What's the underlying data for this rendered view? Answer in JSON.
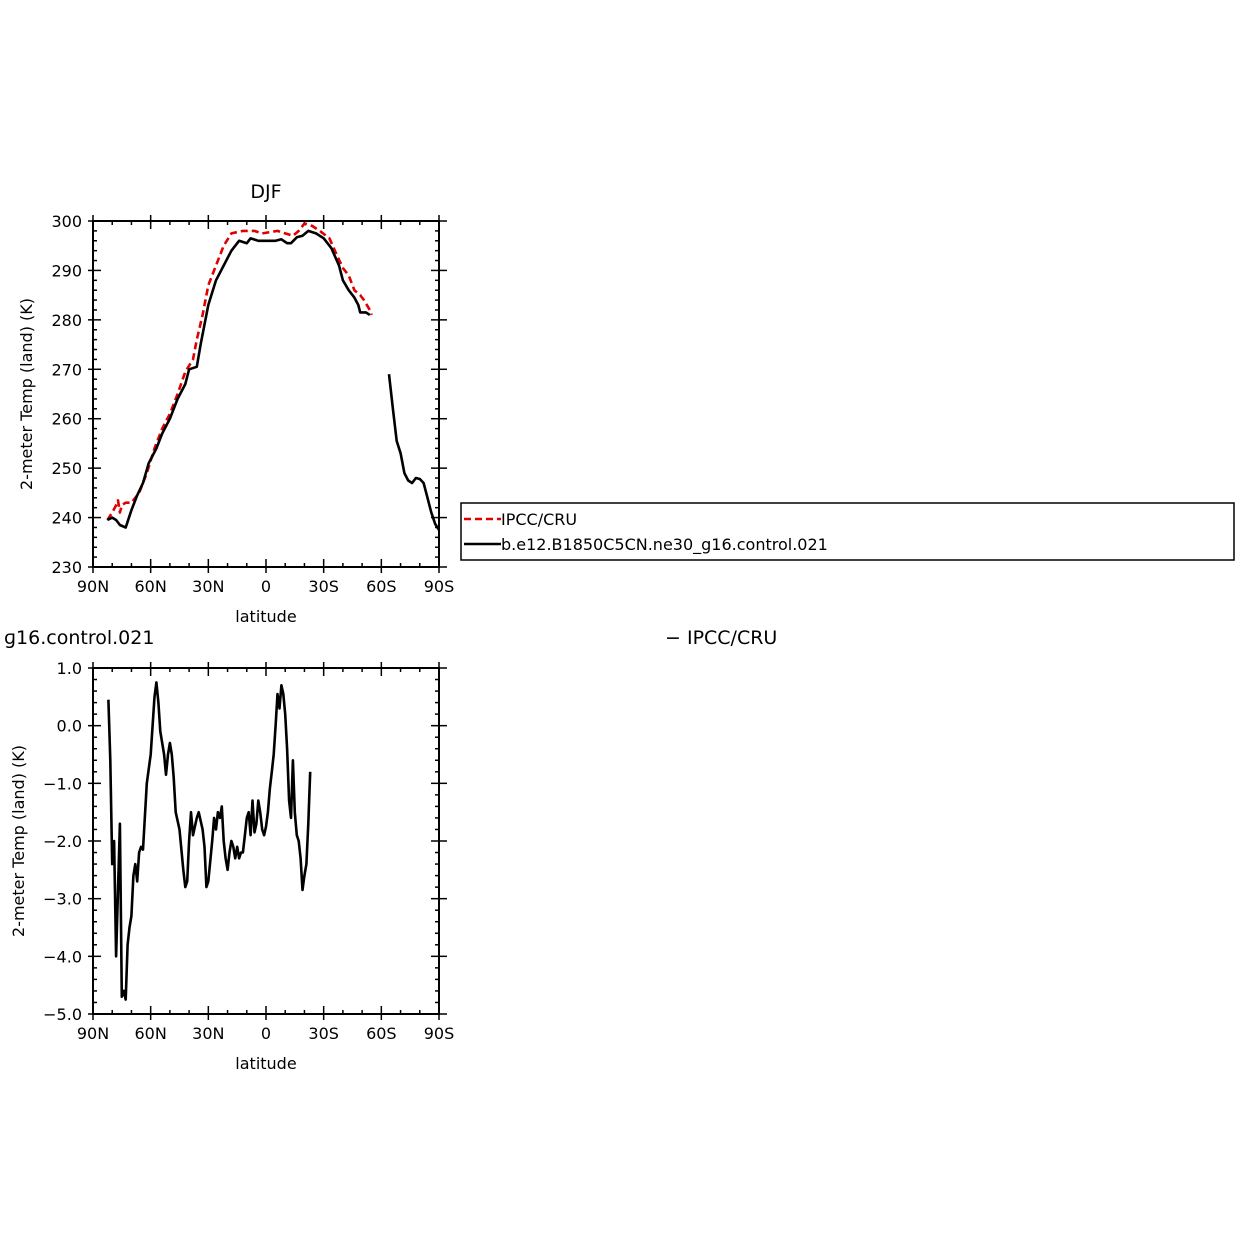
{
  "colors": {
    "obs": "#e00000",
    "model": "#000000",
    "frame": "#000000"
  },
  "chart_data": [
    {
      "type": "line",
      "title": "DJF",
      "xlabel": "latitude",
      "ylabel": "2-meter Temp (land) (K)",
      "xlim": [
        90,
        -90
      ],
      "ylim": [
        230,
        300
      ],
      "xticks": [
        90,
        60,
        30,
        0,
        -30,
        -60,
        -90
      ],
      "xticklabels": [
        "90N",
        "60N",
        "30N",
        "0",
        "30S",
        "60S",
        "90S"
      ],
      "yticks": [
        230,
        240,
        250,
        260,
        270,
        280,
        290,
        300
      ],
      "yticklabels": [
        "230",
        "240",
        "250",
        "260",
        "270",
        "280",
        "290",
        "300"
      ],
      "legend": "right, outside plot",
      "series": [
        {
          "name": "IPCC/CRU",
          "style": "dashed",
          "color": "#e00000",
          "segments": [
            [
              [
                82.5,
                239.5
              ],
              [
                80,
                241
              ],
              [
                78,
                242.5
              ],
              [
                77,
                243.5
              ],
              [
                76,
                241
              ],
              [
                75,
                242.5
              ],
              [
                73,
                243
              ],
              [
                70,
                243
              ],
              [
                66,
                245
              ],
              [
                62,
                249
              ],
              [
                58,
                254
              ],
              [
                54,
                258
              ],
              [
                50,
                261
              ],
              [
                46,
                265
              ],
              [
                42,
                269.5
              ],
              [
                38,
                272
              ],
              [
                36,
                276
              ],
              [
                33,
                281
              ],
              [
                30,
                287
              ],
              [
                26,
                291
              ],
              [
                22,
                295
              ],
              [
                18,
                297.5
              ],
              [
                12,
                298
              ],
              [
                6,
                298
              ],
              [
                2,
                297.5
              ],
              [
                -6,
                298
              ],
              [
                -10,
                297.5
              ],
              [
                -14,
                297
              ],
              [
                -17,
                298
              ],
              [
                -20,
                299.5
              ],
              [
                -24,
                299
              ],
              [
                -28,
                298
              ],
              [
                -33,
                296.5
              ],
              [
                -37,
                293
              ],
              [
                -40,
                290.5
              ],
              [
                -43,
                289
              ],
              [
                -46,
                286
              ],
              [
                -49,
                285
              ],
              [
                -51,
                284
              ],
              [
                -54,
                282
              ],
              [
                -55,
                281
              ]
            ]
          ]
        },
        {
          "name": "b.e12.B1850C5CN.ne30_g16.control.021",
          "style": "solid",
          "color": "#000000",
          "segments": [
            [
              [
                82.5,
                239.5
              ],
              [
                80,
                240
              ],
              [
                78,
                239.5
              ],
              [
                76,
                238.5
              ],
              [
                73,
                238
              ],
              [
                70,
                241.5
              ],
              [
                67,
                244.5
              ],
              [
                64,
                247
              ],
              [
                61,
                251
              ],
              [
                57,
                254
              ],
              [
                54,
                257
              ],
              [
                50,
                260
              ],
              [
                46,
                264
              ],
              [
                42,
                267
              ],
              [
                40,
                270
              ],
              [
                36,
                270.5
              ],
              [
                34,
                275
              ],
              [
                30,
                283
              ],
              [
                26,
                288
              ],
              [
                22,
                291
              ],
              [
                18,
                294
              ],
              [
                14,
                296
              ],
              [
                10,
                295.5
              ],
              [
                8,
                296.5
              ],
              [
                4,
                296
              ],
              [
                0,
                296
              ],
              [
                -5,
                296
              ],
              [
                -8,
                296.3
              ],
              [
                -11,
                295.5
              ],
              [
                -13,
                295.5
              ],
              [
                -16,
                296.7
              ],
              [
                -19,
                297
              ],
              [
                -22,
                298
              ],
              [
                -26,
                297.5
              ],
              [
                -30,
                296.5
              ],
              [
                -34,
                294.5
              ],
              [
                -38,
                291
              ],
              [
                -40,
                288
              ],
              [
                -43,
                286
              ],
              [
                -46,
                284.5
              ],
              [
                -48,
                283
              ],
              [
                -49,
                281.5
              ],
              [
                -52,
                281.5
              ],
              [
                -54,
                281
              ]
            ],
            [
              [
                -64,
                269
              ],
              [
                -66,
                262
              ],
              [
                -68,
                255.5
              ],
              [
                -70,
                253
              ],
              [
                -72,
                249
              ],
              [
                -74,
                247.5
              ],
              [
                -76,
                247
              ],
              [
                -78,
                248
              ],
              [
                -80,
                247.8
              ],
              [
                -82,
                247
              ],
              [
                -84,
                244
              ],
              [
                -86,
                241
              ],
              [
                -88,
                238.7
              ],
              [
                -90,
                237.5
              ]
            ]
          ]
        }
      ]
    },
    {
      "type": "line",
      "title": "ɡ 16.control.021",
      "title_right": "− IPCC/CRU",
      "xlabel": "latitude",
      "ylabel": "2-meter Temp (land) (K)",
      "xlim": [
        90,
        -90
      ],
      "ylim": [
        -5.0,
        1.0
      ],
      "xticks": [
        90,
        60,
        30,
        0,
        -30,
        -60,
        -90
      ],
      "xticklabels": [
        "90N",
        "60N",
        "30N",
        "0",
        "30S",
        "60S",
        "90S"
      ],
      "yticks": [
        -5.0,
        -4.0,
        -3.0,
        -2.0,
        -1.0,
        0.0,
        1.0
      ],
      "yticklabels": [
        "−5.0",
        "−4.0",
        "−3.0",
        "−2.0",
        "−1.0",
        "0.0",
        "1.0"
      ],
      "series": [
        {
          "style": "solid",
          "color": "#000000",
          "segments": [
            [
              [
                82,
                0.45
              ],
              [
                81,
                -0.6
              ],
              [
                80,
                -2.4
              ],
              [
                79,
                -2.0
              ],
              [
                78,
                -4.0
              ],
              [
                76,
                -1.7
              ],
              [
                75,
                -4.7
              ],
              [
                74,
                -4.6
              ],
              [
                73,
                -4.75
              ],
              [
                72,
                -3.8
              ],
              [
                71,
                -3.5
              ],
              [
                70,
                -3.3
              ],
              [
                69,
                -2.6
              ],
              [
                68,
                -2.4
              ],
              [
                67,
                -2.7
              ],
              [
                66,
                -2.2
              ],
              [
                65,
                -2.1
              ],
              [
                64,
                -2.15
              ],
              [
                62,
                -1.0
              ],
              [
                60,
                -0.5
              ],
              [
                58,
                0.5
              ],
              [
                57,
                0.75
              ],
              [
                56,
                0.4
              ],
              [
                55,
                -0.1
              ],
              [
                53,
                -0.5
              ],
              [
                52,
                -0.85
              ],
              [
                51,
                -0.5
              ],
              [
                50,
                -0.3
              ],
              [
                49,
                -0.5
              ],
              [
                48,
                -0.9
              ],
              [
                47,
                -1.5
              ],
              [
                45,
                -1.8
              ],
              [
                43,
                -2.5
              ],
              [
                42,
                -2.8
              ],
              [
                41,
                -2.7
              ],
              [
                40,
                -2.0
              ],
              [
                39,
                -1.5
              ],
              [
                38,
                -1.9
              ],
              [
                36,
                -1.6
              ],
              [
                35,
                -1.5
              ],
              [
                33,
                -1.8
              ],
              [
                32,
                -2.1
              ],
              [
                31,
                -2.8
              ],
              [
                30,
                -2.7
              ],
              [
                28,
                -2.0
              ],
              [
                27,
                -1.6
              ],
              [
                26,
                -1.8
              ],
              [
                25,
                -1.5
              ],
              [
                24,
                -1.6
              ],
              [
                23,
                -1.4
              ],
              [
                22,
                -2.0
              ],
              [
                21,
                -2.3
              ],
              [
                20,
                -2.5
              ],
              [
                19,
                -2.2
              ],
              [
                18,
                -2.0
              ],
              [
                17,
                -2.1
              ],
              [
                16,
                -2.3
              ],
              [
                15,
                -2.1
              ],
              [
                14,
                -2.3
              ],
              [
                13,
                -2.2
              ],
              [
                12,
                -2.2
              ],
              [
                11,
                -1.9
              ],
              [
                10,
                -1.6
              ],
              [
                9,
                -1.5
              ],
              [
                8,
                -1.9
              ],
              [
                7,
                -1.3
              ],
              [
                6,
                -1.85
              ],
              [
                5,
                -1.7
              ],
              [
                4,
                -1.3
              ],
              [
                3,
                -1.5
              ],
              [
                2,
                -1.8
              ],
              [
                1,
                -1.9
              ],
              [
                0,
                -1.75
              ],
              [
                -1,
                -1.5
              ],
              [
                -2,
                -1.1
              ],
              [
                -3,
                -0.8
              ],
              [
                -4,
                -0.5
              ],
              [
                -5,
                0.0
              ],
              [
                -6,
                0.55
              ],
              [
                -7,
                0.3
              ],
              [
                -8,
                0.7
              ],
              [
                -9,
                0.55
              ],
              [
                -10,
                0.2
              ],
              [
                -11,
                -0.4
              ],
              [
                -12,
                -1.3
              ],
              [
                -13,
                -1.6
              ],
              [
                -14,
                -0.6
              ],
              [
                -15,
                -1.5
              ],
              [
                -16,
                -1.9
              ],
              [
                -17,
                -2.0
              ],
              [
                -18,
                -2.3
              ],
              [
                -19,
                -2.85
              ],
              [
                -20,
                -2.6
              ],
              [
                -21,
                -2.4
              ],
              [
                -22,
                -1.7
              ],
              [
                -23,
                -0.8
              ]
            ]
          ],
          "note_x_offset": 0
        }
      ]
    }
  ],
  "legend_box": {
    "entries": [
      {
        "label": "IPCC/CRU",
        "style": "dashed",
        "color": "#e00000"
      },
      {
        "label": "b.e12.B1850C5CN.ne30_g16.control.021",
        "style": "solid",
        "color": "#000000"
      }
    ]
  }
}
